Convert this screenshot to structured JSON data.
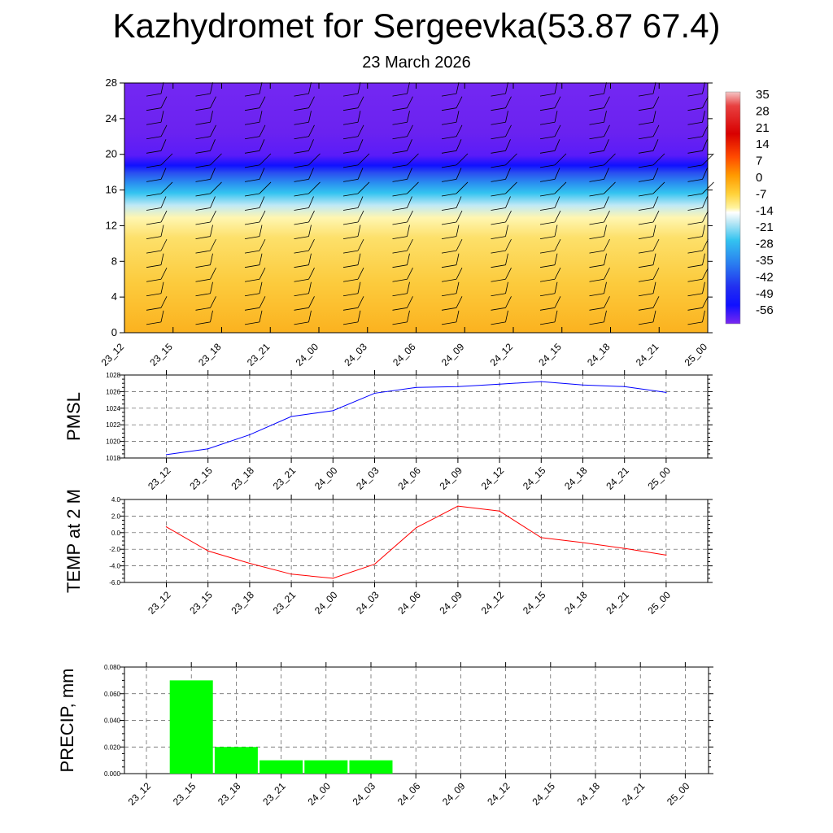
{
  "title": "Kazhydromet for Sergeevka(53.87 67.4)",
  "date": "23 March 2026",
  "time_labels": [
    "23_12",
    "23_15",
    "23_18",
    "23_21",
    "24_00",
    "24_03",
    "24_06",
    "24_09",
    "24_12",
    "24_15",
    "24_18",
    "24_21",
    "25_00"
  ],
  "colors": {
    "pmsl_line": "#0000ff",
    "temp_line": "#ff0000",
    "precip_bar": "#00ff00",
    "grid": "#555555",
    "barb": "#000000"
  },
  "chart_data": [
    {
      "type": "heatmap",
      "name": "upper-air temperature cross-section",
      "y_range": [
        0,
        28
      ],
      "y_ticks": [
        0,
        4,
        8,
        12,
        16,
        20,
        24,
        28
      ],
      "x_labels": [
        "23_12",
        "23_15",
        "23_18",
        "23_21",
        "24_00",
        "24_03",
        "24_06",
        "24_09",
        "24_12",
        "24_15",
        "24_18",
        "24_21",
        "25_00"
      ],
      "colorbar": {
        "labels": [
          "35",
          "28",
          "21",
          "14",
          "7",
          "0",
          "-7",
          "-14",
          "-21",
          "-28",
          "-35",
          "-42",
          "-49",
          "-56"
        ]
      },
      "approx_temperature_by_level": [
        {
          "level": 0,
          "value": 3
        },
        {
          "level": 6,
          "value": 1
        },
        {
          "level": 10,
          "value": -4
        },
        {
          "level": 12,
          "value": -12
        },
        {
          "level": 14,
          "value": -28
        },
        {
          "level": 16,
          "value": -45
        },
        {
          "level": 18,
          "value": -60
        },
        {
          "level": 22,
          "value": -57
        },
        {
          "level": 28,
          "value": -56
        }
      ],
      "wind_barbs": "present at each time step and level"
    },
    {
      "type": "line",
      "name": "PMSL",
      "ylabel": "PMSL",
      "ylim": [
        1018,
        1028
      ],
      "y_ticks": [
        "1018",
        "1020",
        "1022",
        "1024",
        "1026",
        "1028"
      ],
      "categories": [
        "23_12",
        "23_15",
        "23_18",
        "23_21",
        "24_00",
        "24_03",
        "24_06",
        "24_09",
        "24_12",
        "24_15",
        "24_18",
        "24_21",
        "25_00"
      ],
      "values": [
        1018.4,
        1019.1,
        1020.8,
        1023.0,
        1023.7,
        1025.8,
        1026.5,
        1026.6,
        1026.9,
        1027.2,
        1026.8,
        1026.6,
        1025.9
      ]
    },
    {
      "type": "line",
      "name": "TEMP at 2 M",
      "ylabel": "TEMP at 2 M",
      "ylim": [
        -6,
        4
      ],
      "y_ticks": [
        "-6.0",
        "-4.0",
        "-2.0",
        "0.0",
        "2.0",
        "4.0"
      ],
      "categories": [
        "23_12",
        "23_15",
        "23_18",
        "23_21",
        "24_00",
        "24_03",
        "24_06",
        "24_09",
        "24_12",
        "24_15",
        "24_18",
        "24_21",
        "25_00"
      ],
      "values": [
        0.7,
        -2.2,
        -3.7,
        -5.0,
        -5.5,
        -3.8,
        0.6,
        3.2,
        2.6,
        -0.6,
        -1.2,
        -1.9,
        -2.7
      ]
    },
    {
      "type": "bar",
      "name": "PRECIP, mm",
      "ylabel": "PRECIP, mm",
      "ylim": [
        0,
        0.08
      ],
      "y_ticks": [
        "0.000",
        "0.020",
        "0.040",
        "0.060",
        "0.080"
      ],
      "categories": [
        "23_12",
        "23_15",
        "23_18",
        "23_21",
        "24_00",
        "24_03",
        "24_06",
        "24_09",
        "24_12",
        "24_15",
        "24_18",
        "24_21",
        "25_00"
      ],
      "values": [
        0,
        0.07,
        0.02,
        0.01,
        0.01,
        0.01,
        0,
        0,
        0,
        0,
        0,
        0,
        0
      ]
    }
  ]
}
